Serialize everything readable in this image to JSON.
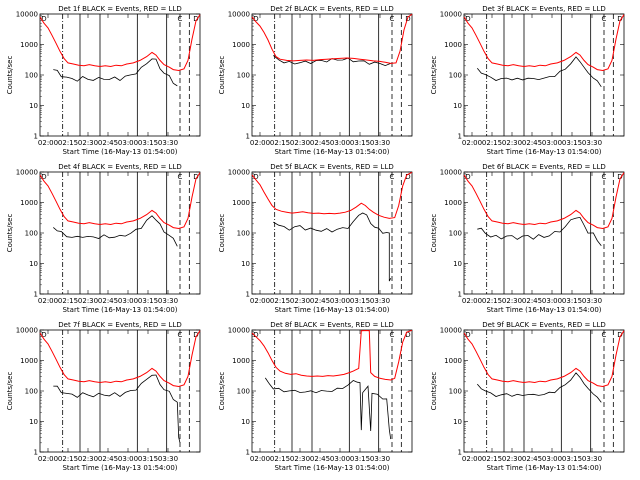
{
  "chart_data": [
    {
      "type": "line",
      "title": "Det 1f BLACK = Events, RED = LLD",
      "xlabel": "Start Time (16-May-13 01:54:00)",
      "ylabel": "Counts/sec",
      "red_profile": "A",
      "black_profile": "A",
      "black_drop": false
    },
    {
      "type": "line",
      "title": "Det 2f BLACK = Events, RED = LLD",
      "xlabel": "Start Time (16-May-13 01:54:00)",
      "ylabel": "Counts/sec",
      "red_profile": "B",
      "black_profile": "B",
      "black_drop": false
    },
    {
      "type": "line",
      "title": "Det 3f BLACK = Events, RED = LLD",
      "xlabel": "Start Time (16-May-13 01:54:00)",
      "ylabel": "Counts/sec",
      "red_profile": "A",
      "black_profile": "A",
      "black_drop": false
    },
    {
      "type": "line",
      "title": "Det 4f BLACK = Events, RED = LLD",
      "xlabel": "Start Time (16-May-13 01:54:00)",
      "ylabel": "Counts/sec",
      "red_profile": "A",
      "black_profile": "A",
      "black_drop": false
    },
    {
      "type": "line",
      "title": "Det 5f BLACK = Events, RED = LLD",
      "xlabel": "Start Time (16-May-13 01:54:00)",
      "ylabel": "Counts/sec",
      "red_profile": "C",
      "black_profile": "C",
      "black_drop": true
    },
    {
      "type": "line",
      "title": "Det 6f BLACK = Events, RED = LLD",
      "xlabel": "Start Time (16-May-13 01:54:00)",
      "ylabel": "Counts/sec",
      "red_profile": "A",
      "black_profile": "A",
      "black_drop": false
    },
    {
      "type": "line",
      "title": "Det 7f BLACK = Events, RED = LLD",
      "xlabel": "Start Time (16-May-13 01:54:00)",
      "ylabel": "Counts/sec",
      "red_profile": "A",
      "black_profile": "A",
      "black_drop": true
    },
    {
      "type": "line",
      "title": "Det 8f BLACK = Events, RED = LLD",
      "xlabel": "Start Time (16-May-13 01:54:00)",
      "ylabel": "Counts/sec",
      "red_profile": "D",
      "black_profile": "D",
      "black_drop": true
    },
    {
      "type": "line",
      "title": "Det 9f BLACK = Events, RED = LLD",
      "xlabel": "Start Time (16-May-13 01:54:00)",
      "ylabel": "Counts/sec",
      "red_profile": "A",
      "black_profile": "A",
      "black_drop": false
    }
  ],
  "shared": {
    "xticks": [
      "02:00",
      "02:15",
      "02:30",
      "02:45",
      "03:00",
      "03:15",
      "03:30"
    ],
    "yticks": [
      "1",
      "10",
      "100",
      "1000",
      "10000"
    ],
    "ylim": [
      1,
      10000
    ],
    "yscale": "log",
    "corner_markers": [
      "D",
      "C",
      "D"
    ],
    "series_colors": {
      "events": "#000000",
      "lld": "#ff0000"
    }
  },
  "profiles": {
    "A": {
      "red": [
        [
          0,
          8000
        ],
        [
          3,
          5000
        ],
        [
          6,
          3500
        ],
        [
          9,
          2000
        ],
        [
          12,
          1100
        ],
        [
          15,
          600
        ],
        [
          18,
          350
        ],
        [
          21,
          250
        ],
        [
          25,
          230
        ],
        [
          29,
          210
        ],
        [
          33,
          200
        ],
        [
          37,
          220
        ],
        [
          41,
          200
        ],
        [
          45,
          190
        ],
        [
          49,
          200
        ],
        [
          53,
          190
        ],
        [
          57,
          210
        ],
        [
          61,
          200
        ],
        [
          65,
          230
        ],
        [
          70,
          250
        ],
        [
          75,
          300
        ],
        [
          80,
          400
        ],
        [
          84,
          550
        ],
        [
          87,
          450
        ],
        [
          90,
          300
        ],
        [
          93,
          220
        ],
        [
          97,
          180
        ],
        [
          100,
          150
        ],
        [
          104,
          140
        ],
        [
          108,
          160
        ],
        [
          111,
          300
        ],
        [
          114,
          1500
        ],
        [
          117,
          6000
        ],
        [
          120,
          9500
        ]
      ],
      "black": [
        [
          10,
          150
        ],
        [
          13,
          130
        ],
        [
          16,
          100
        ],
        [
          20,
          80
        ],
        [
          24,
          75
        ],
        [
          28,
          70
        ],
        [
          32,
          80
        ],
        [
          36,
          75
        ],
        [
          40,
          70
        ],
        [
          44,
          75
        ],
        [
          48,
          80
        ],
        [
          52,
          70
        ],
        [
          56,
          80
        ],
        [
          60,
          75
        ],
        [
          64,
          85
        ],
        [
          68,
          100
        ],
        [
          72,
          120
        ],
        [
          76,
          160
        ],
        [
          80,
          250
        ],
        [
          84,
          350
        ],
        [
          87,
          300
        ],
        [
          90,
          180
        ],
        [
          93,
          110
        ],
        [
          97,
          90
        ],
        [
          100,
          60
        ],
        [
          103,
          40
        ]
      ]
    },
    "B": {
      "red": [
        [
          0,
          8000
        ],
        [
          3,
          5500
        ],
        [
          6,
          4000
        ],
        [
          9,
          2500
        ],
        [
          12,
          1400
        ],
        [
          15,
          700
        ],
        [
          18,
          400
        ],
        [
          21,
          330
        ],
        [
          26,
          300
        ],
        [
          31,
          290
        ],
        [
          36,
          300
        ],
        [
          41,
          310
        ],
        [
          46,
          300
        ],
        [
          51,
          320
        ],
        [
          56,
          330
        ],
        [
          61,
          340
        ],
        [
          66,
          350
        ],
        [
          71,
          360
        ],
        [
          76,
          350
        ],
        [
          81,
          330
        ],
        [
          86,
          310
        ],
        [
          91,
          290
        ],
        [
          96,
          280
        ],
        [
          100,
          260
        ],
        [
          104,
          240
        ],
        [
          108,
          250
        ],
        [
          111,
          600
        ],
        [
          114,
          3000
        ],
        [
          117,
          8000
        ],
        [
          120,
          9800
        ]
      ],
      "black": [
        [
          16,
          400
        ],
        [
          20,
          320
        ],
        [
          24,
          270
        ],
        [
          28,
          250
        ],
        [
          32,
          250
        ],
        [
          36,
          255
        ],
        [
          40,
          260
        ],
        [
          44,
          270
        ],
        [
          48,
          280
        ],
        [
          52,
          290
        ],
        [
          56,
          300
        ],
        [
          60,
          310
        ],
        [
          64,
          320
        ],
        [
          68,
          330
        ],
        [
          72,
          320
        ],
        [
          76,
          300
        ],
        [
          80,
          285
        ],
        [
          84,
          270
        ],
        [
          88,
          255
        ],
        [
          92,
          245
        ],
        [
          96,
          235
        ],
        [
          100,
          225
        ],
        [
          104,
          215
        ]
      ]
    },
    "C": {
      "red": [
        [
          0,
          8000
        ],
        [
          3,
          5500
        ],
        [
          6,
          3800
        ],
        [
          9,
          2200
        ],
        [
          12,
          1300
        ],
        [
          15,
          800
        ],
        [
          18,
          600
        ],
        [
          22,
          520
        ],
        [
          26,
          480
        ],
        [
          30,
          450
        ],
        [
          34,
          470
        ],
        [
          38,
          500
        ],
        [
          42,
          460
        ],
        [
          46,
          440
        ],
        [
          50,
          450
        ],
        [
          54,
          430
        ],
        [
          58,
          440
        ],
        [
          62,
          430
        ],
        [
          66,
          450
        ],
        [
          70,
          480
        ],
        [
          74,
          550
        ],
        [
          78,
          700
        ],
        [
          82,
          950
        ],
        [
          85,
          800
        ],
        [
          88,
          600
        ],
        [
          91,
          480
        ],
        [
          95,
          380
        ],
        [
          99,
          330
        ],
        [
          103,
          300
        ],
        [
          107,
          320
        ],
        [
          110,
          800
        ],
        [
          113,
          3500
        ],
        [
          116,
          8000
        ],
        [
          120,
          9800
        ]
      ],
      "black": [
        [
          16,
          250
        ],
        [
          20,
          180
        ],
        [
          24,
          150
        ],
        [
          28,
          140
        ],
        [
          32,
          150
        ],
        [
          36,
          170
        ],
        [
          40,
          140
        ],
        [
          44,
          130
        ],
        [
          48,
          130
        ],
        [
          52,
          120
        ],
        [
          56,
          125
        ],
        [
          60,
          120
        ],
        [
          64,
          130
        ],
        [
          68,
          140
        ],
        [
          72,
          160
        ],
        [
          76,
          220
        ],
        [
          80,
          380
        ],
        [
          83,
          500
        ],
        [
          86,
          350
        ],
        [
          89,
          220
        ],
        [
          92,
          160
        ],
        [
          95,
          130
        ],
        [
          98,
          110
        ],
        [
          101,
          100
        ],
        [
          103,
          95
        ],
        [
          103,
          3
        ],
        [
          104,
          3
        ]
      ]
    },
    "D": {
      "red": [
        [
          0,
          8000
        ],
        [
          3,
          6000
        ],
        [
          6,
          4500
        ],
        [
          9,
          3000
        ],
        [
          12,
          1800
        ],
        [
          15,
          1000
        ],
        [
          18,
          600
        ],
        [
          21,
          450
        ],
        [
          25,
          380
        ],
        [
          29,
          350
        ],
        [
          33,
          370
        ],
        [
          37,
          330
        ],
        [
          41,
          310
        ],
        [
          45,
          300
        ],
        [
          49,
          310
        ],
        [
          53,
          300
        ],
        [
          57,
          320
        ],
        [
          61,
          310
        ],
        [
          65,
          330
        ],
        [
          69,
          350
        ],
        [
          73,
          400
        ],
        [
          76,
          450
        ],
        [
          78,
          500
        ],
        [
          80,
          550
        ],
        [
          82,
          9500
        ],
        [
          86,
          9600
        ],
        [
          88,
          9500
        ],
        [
          89,
          400
        ],
        [
          92,
          300
        ],
        [
          96,
          260
        ],
        [
          100,
          240
        ],
        [
          104,
          230
        ],
        [
          107,
          260
        ],
        [
          110,
          900
        ],
        [
          113,
          4000
        ],
        [
          116,
          8500
        ],
        [
          120,
          9800
        ]
      ],
      "black": [
        [
          10,
          250
        ],
        [
          13,
          170
        ],
        [
          16,
          130
        ],
        [
          20,
          110
        ],
        [
          24,
          100
        ],
        [
          28,
          105
        ],
        [
          32,
          95
        ],
        [
          36,
          100
        ],
        [
          40,
          90
        ],
        [
          44,
          95
        ],
        [
          48,
          100
        ],
        [
          52,
          95
        ],
        [
          56,
          100
        ],
        [
          60,
          105
        ],
        [
          64,
          110
        ],
        [
          68,
          130
        ],
        [
          72,
          160
        ],
        [
          76,
          200
        ],
        [
          79,
          220
        ],
        [
          81,
          180
        ],
        [
          82,
          5
        ],
        [
          83,
          100
        ],
        [
          87,
          130
        ],
        [
          89,
          5
        ],
        [
          90,
          90
        ],
        [
          94,
          70
        ],
        [
          98,
          60
        ],
        [
          101,
          55
        ],
        [
          103,
          5
        ],
        [
          104,
          3
        ]
      ]
    }
  }
}
